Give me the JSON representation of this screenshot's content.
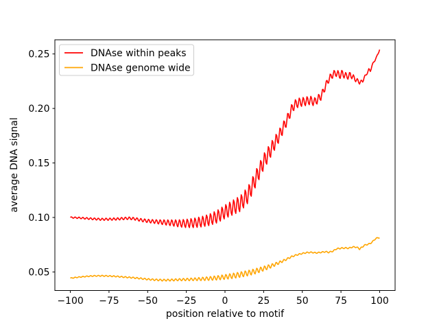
{
  "figure": {
    "background": "#ffffff",
    "spine_color": "#000000",
    "legend_border_color": "#cccccc"
  },
  "chart_data": {
    "type": "line",
    "title": "",
    "xlabel": "position relative to motif",
    "ylabel": "average DNA signal",
    "xlim": [
      -110,
      110
    ],
    "ylim": [
      0.033,
      0.263
    ],
    "grid": false,
    "xticks": [
      -100,
      -75,
      -50,
      -25,
      0,
      25,
      50,
      75,
      100
    ],
    "xtick_labels": [
      "−100",
      "−75",
      "−50",
      "−25",
      "0",
      "25",
      "50",
      "75",
      "100"
    ],
    "yticks": [
      0.05,
      0.1,
      0.15,
      0.2,
      0.25
    ],
    "ytick_labels": [
      "0.05",
      "0.10",
      "0.15",
      "0.20",
      "0.25"
    ],
    "legend": {
      "position": "upper left",
      "entries": [
        "DNAse within peaks",
        "DNAse genome wide"
      ]
    },
    "series": [
      {
        "name": "DNAse within peaks",
        "color": "#ff0000",
        "line_width": 1.6,
        "x_range": [
          -100,
          100
        ],
        "sample_step": 0.5,
        "oscillation_period": 2.5,
        "center_anchors": [
          [
            -100,
            0.1
          ],
          [
            -95,
            0.0997
          ],
          [
            -90,
            0.0992
          ],
          [
            -85,
            0.0987
          ],
          [
            -80,
            0.0983
          ],
          [
            -75,
            0.0984
          ],
          [
            -70,
            0.0986
          ],
          [
            -65,
            0.0991
          ],
          [
            -62,
            0.0993
          ],
          [
            -58,
            0.0987
          ],
          [
            -55,
            0.0978
          ],
          [
            -50,
            0.0968
          ],
          [
            -45,
            0.0962
          ],
          [
            -40,
            0.0956
          ],
          [
            -35,
            0.0951
          ],
          [
            -30,
            0.0946
          ],
          [
            -25,
            0.0945
          ],
          [
            -20,
            0.095
          ],
          [
            -15,
            0.0961
          ],
          [
            -10,
            0.0979
          ],
          [
            -5,
            0.1008
          ],
          [
            0,
            0.1052
          ],
          [
            5,
            0.109
          ],
          [
            10,
            0.1128
          ],
          [
            15,
            0.121
          ],
          [
            20,
            0.136
          ],
          [
            25,
            0.151
          ],
          [
            30,
            0.163
          ],
          [
            35,
            0.175
          ],
          [
            40,
            0.189
          ],
          [
            43,
            0.199
          ],
          [
            45,
            0.2035
          ],
          [
            48,
            0.2055
          ],
          [
            52,
            0.2065
          ],
          [
            55,
            0.2075
          ],
          [
            58,
            0.206
          ],
          [
            60,
            0.2085
          ],
          [
            62,
            0.211
          ],
          [
            64,
            0.217
          ],
          [
            66,
            0.224
          ],
          [
            68,
            0.2285
          ],
          [
            70,
            0.2315
          ],
          [
            72,
            0.2325
          ],
          [
            74,
            0.2305
          ],
          [
            76,
            0.232
          ],
          [
            78,
            0.23
          ],
          [
            80,
            0.2295
          ],
          [
            81,
            0.231
          ],
          [
            83,
            0.2285
          ],
          [
            85,
            0.226
          ],
          [
            87,
            0.224
          ],
          [
            88,
            0.2245
          ],
          [
            89,
            0.225
          ],
          [
            90,
            0.2285
          ],
          [
            91,
            0.23
          ],
          [
            92,
            0.233
          ],
          [
            93,
            0.2355
          ],
          [
            94,
            0.2345
          ],
          [
            95,
            0.239
          ],
          [
            96,
            0.242
          ],
          [
            97,
            0.2445
          ],
          [
            98,
            0.247
          ],
          [
            99,
            0.2505
          ],
          [
            100,
            0.254
          ]
        ],
        "amplitude_anchors": [
          [
            -100,
            0.0006
          ],
          [
            -80,
            0.001
          ],
          [
            -60,
            0.0012
          ],
          [
            -45,
            0.0018
          ],
          [
            -35,
            0.0028
          ],
          [
            -25,
            0.004
          ],
          [
            -15,
            0.005
          ],
          [
            -5,
            0.006
          ],
          [
            5,
            0.007
          ],
          [
            15,
            0.008
          ],
          [
            25,
            0.0075
          ],
          [
            32,
            0.0065
          ],
          [
            40,
            0.005
          ],
          [
            47,
            0.0042
          ],
          [
            60,
            0.004
          ],
          [
            66,
            0.003
          ],
          [
            75,
            0.0035
          ],
          [
            83,
            0.0025
          ],
          [
            88,
            0.0015
          ],
          [
            94,
            0.001
          ],
          [
            100,
            0.0006
          ]
        ]
      },
      {
        "name": "DNAse genome wide",
        "color": "#ffa500",
        "line_width": 1.6,
        "x_range": [
          -100,
          100
        ],
        "sample_step": 0.5,
        "oscillation_period": 2.5,
        "center_anchors": [
          [
            -100,
            0.0443
          ],
          [
            -95,
            0.0452
          ],
          [
            -90,
            0.0459
          ],
          [
            -85,
            0.0464
          ],
          [
            -80,
            0.0465
          ],
          [
            -75,
            0.0463
          ],
          [
            -70,
            0.0459
          ],
          [
            -65,
            0.0453
          ],
          [
            -60,
            0.0448
          ],
          [
            -55,
            0.0441
          ],
          [
            -50,
            0.0433
          ],
          [
            -45,
            0.0428
          ],
          [
            -40,
            0.0425
          ],
          [
            -35,
            0.0426
          ],
          [
            -30,
            0.0429
          ],
          [
            -25,
            0.0431
          ],
          [
            -20,
            0.0433
          ],
          [
            -15,
            0.0436
          ],
          [
            -10,
            0.044
          ],
          [
            -5,
            0.0446
          ],
          [
            0,
            0.0454
          ],
          [
            5,
            0.0464
          ],
          [
            10,
            0.0476
          ],
          [
            15,
            0.049
          ],
          [
            20,
            0.0508
          ],
          [
            25,
            0.0531
          ],
          [
            30,
            0.0556
          ],
          [
            35,
            0.0585
          ],
          [
            40,
            0.0618
          ],
          [
            43,
            0.064
          ],
          [
            46,
            0.0655
          ],
          [
            50,
            0.067
          ],
          [
            53,
            0.0678
          ],
          [
            56,
            0.068
          ],
          [
            59,
            0.0675
          ],
          [
            62,
            0.068
          ],
          [
            65,
            0.0686
          ],
          [
            67,
            0.068
          ],
          [
            70,
            0.0692
          ],
          [
            72,
            0.0712
          ],
          [
            75,
            0.0718
          ],
          [
            78,
            0.072
          ],
          [
            80,
            0.0718
          ],
          [
            82,
            0.0727
          ],
          [
            84,
            0.073
          ],
          [
            86,
            0.0722
          ],
          [
            87,
            0.071
          ],
          [
            88,
            0.0722
          ],
          [
            89,
            0.073
          ],
          [
            90,
            0.0745
          ],
          [
            92,
            0.0752
          ],
          [
            94,
            0.0762
          ],
          [
            95,
            0.0772
          ],
          [
            96,
            0.0788
          ],
          [
            97,
            0.08
          ],
          [
            98,
            0.081
          ],
          [
            99,
            0.0815
          ],
          [
            100,
            0.0813
          ]
        ],
        "amplitude_anchors": [
          [
            -100,
            0.0004
          ],
          [
            -80,
            0.0005
          ],
          [
            -60,
            0.0006
          ],
          [
            -45,
            0.0008
          ],
          [
            -30,
            0.001
          ],
          [
            -20,
            0.0013
          ],
          [
            -10,
            0.0018
          ],
          [
            -2,
            0.0022
          ],
          [
            5,
            0.0025
          ],
          [
            12,
            0.0026
          ],
          [
            20,
            0.0025
          ],
          [
            27,
            0.0021
          ],
          [
            33,
            0.0015
          ],
          [
            38,
            0.001
          ],
          [
            45,
            0.0006
          ],
          [
            60,
            0.0005
          ],
          [
            75,
            0.0006
          ],
          [
            90,
            0.0005
          ],
          [
            100,
            0.0004
          ]
        ]
      }
    ]
  }
}
